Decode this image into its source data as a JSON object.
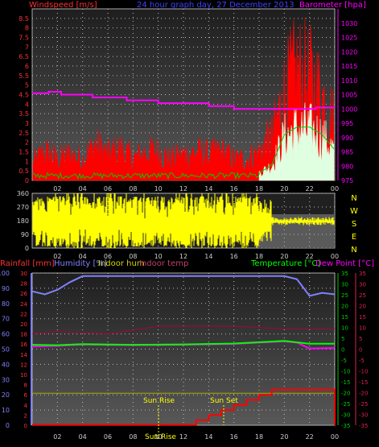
{
  "header": {
    "left_title": "Windspeed [m/s]",
    "center_title": "24 hour graph day,  27 December 2013",
    "right_title": "Barometer [hpa]"
  },
  "panel2": {
    "compass_labels": [
      "N",
      "W",
      "S",
      "E",
      "N"
    ]
  },
  "panel3": {
    "legend_left": [
      "Rainfall [mm]",
      "Humidity [%]",
      "Indoor hum",
      "Indoor temp"
    ],
    "legend_right": [
      "Temperature [°C]",
      "Dew Point [°C]"
    ],
    "annotations": {
      "sunrise": "Sun Rise",
      "sunset": "Sun Set",
      "bottom_marker": "Sun Rise"
    }
  },
  "colors": {
    "windspeed": "#ff0000",
    "gust": "#e0ffe0",
    "avg": "#00cc00",
    "barometer": "#ff00ff",
    "direction": "#ffff00",
    "humidity": "#8080ff",
    "temperature": "#00ff00",
    "dewpoint": "#ff00ff",
    "indoor_hum": "#aaaa00",
    "indoor_temp": "#aa0044",
    "rain": "#ff0000",
    "axis_left": "#ff3030",
    "axis_right": "#ff00ff",
    "axis_temp": "#00cc00"
  },
  "chart_data": [
    {
      "type": "area",
      "name": "windspeed-barometer",
      "x_ticks": [
        "02",
        "04",
        "06",
        "08",
        "10",
        "12",
        "14",
        "16",
        "18",
        "20",
        "22",
        "00"
      ],
      "x_range_hours": [
        0,
        24
      ],
      "y_left_ticks": [
        "0",
        "0.5",
        "1",
        "1.5",
        "2",
        "2.5",
        "3",
        "3.5",
        "4",
        "4.5",
        "5",
        "5.5",
        "6",
        "6.5",
        "7",
        "7.5",
        "8",
        "8.5"
      ],
      "y_left_range": [
        0,
        9
      ],
      "y_right_ticks": [
        "975",
        "980",
        "985",
        "990",
        "995",
        "1000",
        "1005",
        "1010",
        "1015",
        "1020",
        "1025",
        "1030"
      ],
      "y_right_range": [
        975,
        1035
      ],
      "barometer_steps": [
        {
          "x": 0,
          "y": 1005.5
        },
        {
          "x": 1.3,
          "y": 1006.0
        },
        {
          "x": 2.3,
          "y": 1005.0
        },
        {
          "x": 4.8,
          "y": 1004.0
        },
        {
          "x": 7.5,
          "y": 1003.0
        },
        {
          "x": 10.0,
          "y": 1002.0
        },
        {
          "x": 14.0,
          "y": 1001.0
        },
        {
          "x": 16.0,
          "y": 1000.0
        },
        {
          "x": 22.5,
          "y": 1000.5
        },
        {
          "x": 24,
          "y": 1000.5
        }
      ],
      "windspeed_envelope": [
        {
          "x": 0,
          "y": 1.2
        },
        {
          "x": 1,
          "y": 2.0
        },
        {
          "x": 2,
          "y": 1.5
        },
        {
          "x": 3,
          "y": 1.8
        },
        {
          "x": 4,
          "y": 1.5
        },
        {
          "x": 5,
          "y": 2.5
        },
        {
          "x": 6,
          "y": 1.8
        },
        {
          "x": 7,
          "y": 2.2
        },
        {
          "x": 8,
          "y": 1.5
        },
        {
          "x": 9,
          "y": 2.0
        },
        {
          "x": 10,
          "y": 2.0
        },
        {
          "x": 11,
          "y": 1.5
        },
        {
          "x": 12,
          "y": 1.8
        },
        {
          "x": 13,
          "y": 2.0
        },
        {
          "x": 14,
          "y": 1.8
        },
        {
          "x": 15,
          "y": 2.0
        },
        {
          "x": 16,
          "y": 1.5
        },
        {
          "x": 17,
          "y": 1.5
        },
        {
          "x": 18,
          "y": 2.0
        },
        {
          "x": 19,
          "y": 3.0
        },
        {
          "x": 20,
          "y": 6.0
        },
        {
          "x": 21,
          "y": 7.5
        },
        {
          "x": 22,
          "y": 7.0
        },
        {
          "x": 23,
          "y": 6.0
        },
        {
          "x": 24,
          "y": 4.0
        }
      ],
      "gust_envelope": [
        {
          "x": 18,
          "y": 0.5
        },
        {
          "x": 19,
          "y": 1.0
        },
        {
          "x": 20,
          "y": 3.0
        },
        {
          "x": 21,
          "y": 3.5
        },
        {
          "x": 22,
          "y": 3.5
        },
        {
          "x": 23,
          "y": 3.0
        },
        {
          "x": 24,
          "y": 2.0
        }
      ]
    },
    {
      "type": "area",
      "name": "wind-direction",
      "x_ticks": [
        "02",
        "04",
        "06",
        "08",
        "10",
        "12",
        "14",
        "16",
        "18",
        "20",
        "22",
        "00"
      ],
      "y_left_ticks": [
        "0",
        "90",
        "180",
        "270",
        "360"
      ],
      "y_range": [
        0,
        360
      ],
      "direction_band": [
        {
          "x": 0,
          "lo": 20,
          "hi": 340
        },
        {
          "x": 18,
          "lo": 20,
          "hi": 340
        },
        {
          "x": 19,
          "lo": 140,
          "hi": 210
        },
        {
          "x": 24,
          "lo": 150,
          "hi": 200
        }
      ]
    },
    {
      "type": "line",
      "name": "temperature-humidity-rain",
      "x_ticks": [
        "02",
        "04",
        "06",
        "08",
        "10",
        "12",
        "14",
        "16",
        "18",
        "20",
        "22",
        "00"
      ],
      "y_left_humidity_ticks": [
        "0",
        "10",
        "20",
        "30",
        "40",
        "50",
        "60",
        "70",
        "80",
        "90",
        "100"
      ],
      "y_left_rain_ticks": [
        "0",
        "2",
        "4",
        "6",
        "8",
        "10",
        "12",
        "14",
        "16",
        "18",
        "20",
        "22",
        "24",
        "26",
        "28",
        "30"
      ],
      "y_right_temp_ticks": [
        "35",
        "30",
        "25",
        "20",
        "15",
        "10",
        "5",
        "0",
        "-5",
        "-10",
        "-15",
        "-20",
        "-25",
        "-30",
        "-35"
      ],
      "y_right_dew_ticks": [
        "35",
        "30",
        "25",
        "20",
        "15",
        "10",
        "5",
        "0",
        "-5",
        "-10",
        "-15",
        "-20",
        "-25",
        "-30",
        "-35"
      ],
      "temp_range": [
        -35,
        35
      ],
      "series": [
        {
          "name": "Humidity [%]",
          "points": [
            {
              "x": 0,
              "y": 88
            },
            {
              "x": 1,
              "y": 86
            },
            {
              "x": 2,
              "y": 89
            },
            {
              "x": 3,
              "y": 94
            },
            {
              "x": 4,
              "y": 98
            },
            {
              "x": 5,
              "y": 98
            },
            {
              "x": 10,
              "y": 98
            },
            {
              "x": 14,
              "y": 98
            },
            {
              "x": 18,
              "y": 98
            },
            {
              "x": 20,
              "y": 98
            },
            {
              "x": 21,
              "y": 96
            },
            {
              "x": 22,
              "y": 85
            },
            {
              "x": 23,
              "y": 87
            },
            {
              "x": 24,
              "y": 86
            }
          ]
        },
        {
          "name": "Temperature [°C]",
          "points": [
            {
              "x": 0,
              "y": 2.0
            },
            {
              "x": 2,
              "y": 1.8
            },
            {
              "x": 4,
              "y": 2.3
            },
            {
              "x": 8,
              "y": 2.0
            },
            {
              "x": 12,
              "y": 2.2
            },
            {
              "x": 16,
              "y": 2.6
            },
            {
              "x": 20,
              "y": 3.8
            },
            {
              "x": 22,
              "y": 2.5
            },
            {
              "x": 24,
              "y": 2.5
            }
          ]
        },
        {
          "name": "Dew Point [°C]",
          "points": [
            {
              "x": 0,
              "y": 1.2
            },
            {
              "x": 2,
              "y": 1.5
            },
            {
              "x": 4,
              "y": 2.1
            },
            {
              "x": 8,
              "y": 1.8
            },
            {
              "x": 12,
              "y": 2.0
            },
            {
              "x": 16,
              "y": 2.4
            },
            {
              "x": 20,
              "y": 3.6
            },
            {
              "x": 21,
              "y": 3.0
            },
            {
              "x": 22,
              "y": 0.3
            },
            {
              "x": 24,
              "y": 0.5
            }
          ]
        },
        {
          "name": "Indoor hum",
          "points": [
            {
              "x": 0,
              "y": 21
            },
            {
              "x": 24,
              "y": 21
            }
          ]
        },
        {
          "name": "Indoor temp",
          "points": [
            {
              "x": 0,
              "y": 18
            },
            {
              "x": 2,
              "y": 18.5
            },
            {
              "x": 6,
              "y": 18.0
            },
            {
              "x": 10,
              "y": 19.5
            },
            {
              "x": 16,
              "y": 19.5
            },
            {
              "x": 20,
              "y": 19.0
            },
            {
              "x": 24,
              "y": 19.0
            }
          ]
        },
        {
          "name": "Rainfall [mm]",
          "points": [
            {
              "x": 0,
              "y": 0.1
            },
            {
              "x": 12.5,
              "y": 0.1
            },
            {
              "x": 13,
              "y": 1
            },
            {
              "x": 14,
              "y": 2
            },
            {
              "x": 15,
              "y": 3
            },
            {
              "x": 16,
              "y": 4
            },
            {
              "x": 17,
              "y": 5
            },
            {
              "x": 18,
              "y": 6
            },
            {
              "x": 19,
              "y": 7
            },
            {
              "x": 24,
              "y": 7
            },
            {
              "x": 24,
              "y": 0
            }
          ]
        }
      ]
    }
  ]
}
